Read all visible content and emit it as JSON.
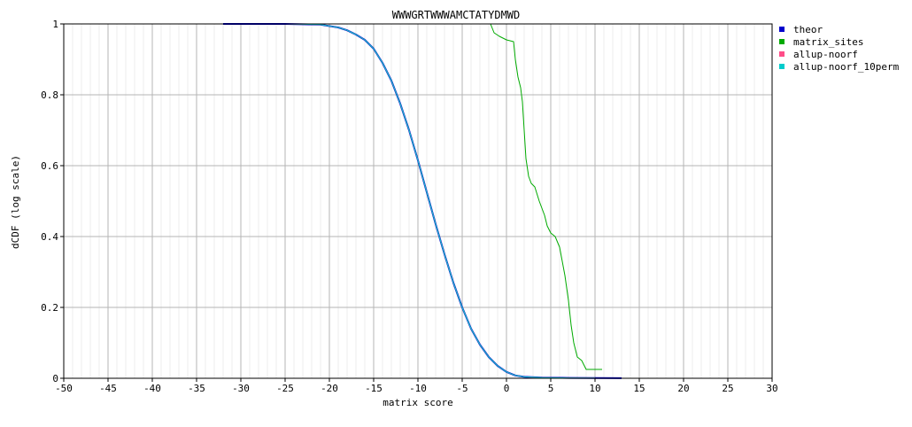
{
  "chart_data": {
    "type": "line",
    "title": "WWWGRTWWWAMCTATYDMWD",
    "xlabel": "matrix score",
    "ylabel": "dCDF (log scale)",
    "xlim": [
      -50,
      30
    ],
    "ylim": [
      0,
      1
    ],
    "x_ticks": [
      -50,
      -45,
      -40,
      -35,
      -30,
      -25,
      -20,
      -15,
      -10,
      -5,
      0,
      5,
      10,
      15,
      20,
      25,
      30
    ],
    "y_ticks": [
      0,
      0.2,
      0.4,
      0.6,
      0.8,
      1
    ],
    "grid": true,
    "legend_position": "right",
    "series": [
      {
        "name": "theor",
        "color": "#0000cc",
        "points": [
          [
            -32,
            1.0
          ],
          [
            -25,
            1.0
          ],
          [
            -21,
            0.998
          ],
          [
            -19,
            0.99
          ],
          [
            -18,
            0.982
          ],
          [
            -17,
            0.97
          ],
          [
            -16,
            0.955
          ],
          [
            -15,
            0.93
          ],
          [
            -14,
            0.89
          ],
          [
            -13,
            0.84
          ],
          [
            -12,
            0.775
          ],
          [
            -11,
            0.7
          ],
          [
            -10,
            0.615
          ],
          [
            -9,
            0.525
          ],
          [
            -8,
            0.435
          ],
          [
            -7,
            0.35
          ],
          [
            -6,
            0.27
          ],
          [
            -5,
            0.2
          ],
          [
            -4,
            0.14
          ],
          [
            -3,
            0.095
          ],
          [
            -2,
            0.06
          ],
          [
            -1,
            0.035
          ],
          [
            0,
            0.018
          ],
          [
            1,
            0.008
          ],
          [
            2,
            0.004
          ],
          [
            4,
            0.002
          ],
          [
            7,
            0.001
          ],
          [
            10,
            0.0005
          ],
          [
            13,
            0.0003
          ]
        ]
      },
      {
        "name": "matrix_sites",
        "color": "#00aa00",
        "points": [
          [
            -32,
            1.0
          ],
          [
            -1.8,
            1.0
          ],
          [
            -1.4,
            0.975
          ],
          [
            -0.8,
            0.965
          ],
          [
            0,
            0.955
          ],
          [
            0.8,
            0.95
          ],
          [
            1,
            0.9
          ],
          [
            1.3,
            0.85
          ],
          [
            1.6,
            0.82
          ],
          [
            1.8,
            0.78
          ],
          [
            2,
            0.7
          ],
          [
            2.2,
            0.62
          ],
          [
            2.5,
            0.57
          ],
          [
            2.8,
            0.55
          ],
          [
            3.2,
            0.54
          ],
          [
            3.7,
            0.5
          ],
          [
            4,
            0.48
          ],
          [
            4.3,
            0.46
          ],
          [
            4.6,
            0.43
          ],
          [
            5,
            0.41
          ],
          [
            5.5,
            0.4
          ],
          [
            6,
            0.37
          ],
          [
            6.3,
            0.33
          ],
          [
            6.6,
            0.29
          ],
          [
            7,
            0.22
          ],
          [
            7.3,
            0.15
          ],
          [
            7.6,
            0.1
          ],
          [
            8,
            0.06
          ],
          [
            8.5,
            0.05
          ],
          [
            9,
            0.025
          ],
          [
            10.8,
            0.025
          ]
        ]
      },
      {
        "name": "allup-noorf",
        "color": "#ff4d88",
        "points": [
          [
            -32,
            1.0
          ],
          [
            -25,
            1.0
          ],
          [
            -21,
            0.998
          ],
          [
            -19,
            0.99
          ],
          [
            -18,
            0.982
          ],
          [
            -17,
            0.97
          ],
          [
            -16,
            0.955
          ],
          [
            -15,
            0.93
          ],
          [
            -14,
            0.89
          ],
          [
            -13,
            0.84
          ],
          [
            -12,
            0.775
          ],
          [
            -11,
            0.7
          ],
          [
            -10,
            0.615
          ],
          [
            -9,
            0.525
          ],
          [
            -8,
            0.435
          ],
          [
            -7,
            0.35
          ],
          [
            -6,
            0.27
          ],
          [
            -5,
            0.2
          ],
          [
            -4,
            0.14
          ],
          [
            -3,
            0.095
          ],
          [
            -2,
            0.06
          ],
          [
            -1,
            0.035
          ],
          [
            0,
            0.018
          ],
          [
            1,
            0.008
          ],
          [
            2,
            0.004
          ],
          [
            4,
            0.002
          ],
          [
            7,
            0.001
          ],
          [
            10,
            0.0005
          ]
        ]
      },
      {
        "name": "allup-noorf_10perm",
        "color": "#00cccc",
        "points": [
          [
            -32,
            1.0
          ],
          [
            -25,
            1.0
          ],
          [
            -21,
            0.998
          ],
          [
            -19,
            0.99
          ],
          [
            -18,
            0.982
          ],
          [
            -17,
            0.97
          ],
          [
            -16,
            0.955
          ],
          [
            -15,
            0.93
          ],
          [
            -14,
            0.89
          ],
          [
            -13,
            0.84
          ],
          [
            -12,
            0.775
          ],
          [
            -11,
            0.7
          ],
          [
            -10,
            0.615
          ],
          [
            -9,
            0.525
          ],
          [
            -8,
            0.435
          ],
          [
            -7,
            0.35
          ],
          [
            -6,
            0.27
          ],
          [
            -5,
            0.2
          ],
          [
            -4,
            0.14
          ],
          [
            -3,
            0.095
          ],
          [
            -2,
            0.06
          ],
          [
            -1,
            0.035
          ],
          [
            0,
            0.018
          ],
          [
            1,
            0.008
          ],
          [
            2,
            0.004
          ],
          [
            4,
            0.002
          ],
          [
            7,
            0.001
          ],
          [
            10,
            0.0005
          ]
        ]
      }
    ]
  }
}
